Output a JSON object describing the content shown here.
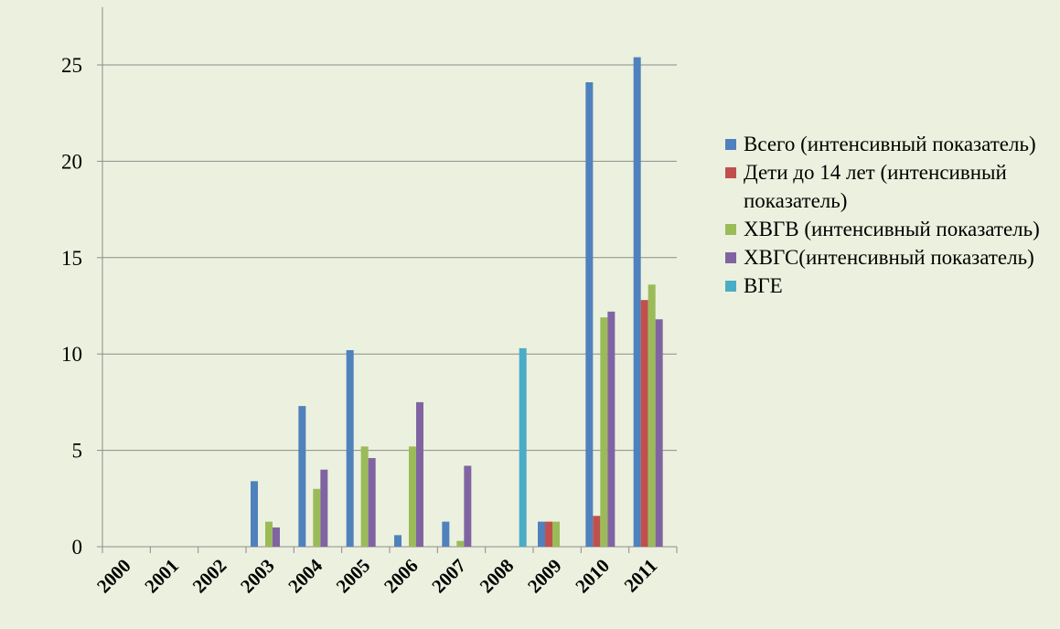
{
  "chart_data": {
    "type": "bar",
    "categories": [
      "2000",
      "2001",
      "2002",
      "2003",
      "2004",
      "2005",
      "2006",
      "2007",
      "2008",
      "2009",
      "2010",
      "2011"
    ],
    "series": [
      {
        "name": "Всего (интенсивный показатель)",
        "color": "#4f81bd",
        "values": [
          0,
          0,
          0,
          3.4,
          7.3,
          10.2,
          0.6,
          1.3,
          0,
          1.3,
          24.1,
          25.4
        ]
      },
      {
        "name": "Дети до 14 лет (интенсивный показатель)",
        "color": "#c0504d",
        "values": [
          0,
          0,
          0,
          0,
          0,
          0,
          0,
          0,
          0,
          1.3,
          1.6,
          12.8
        ]
      },
      {
        "name": "ХВГВ (интенсивный показатель)",
        "color": "#9bbb59",
        "values": [
          0,
          0,
          0,
          1.3,
          3.0,
          5.2,
          5.2,
          0.3,
          0,
          1.3,
          11.9,
          13.6
        ]
      },
      {
        "name": "ХВГС(интенсивный показатель)",
        "color": "#8064a2",
        "values": [
          0,
          0,
          0,
          1.0,
          4.0,
          4.6,
          7.5,
          4.2,
          0,
          0,
          12.2,
          11.8
        ]
      },
      {
        "name": "ВГЕ",
        "color": "#4bacc6",
        "values": [
          0,
          0,
          0,
          0,
          0,
          0,
          0,
          0,
          10.3,
          0,
          0,
          0
        ]
      }
    ],
    "ylim": [
      0,
      28
    ],
    "yticks": [
      0,
      5,
      10,
      15,
      20,
      25
    ],
    "grid": true
  }
}
